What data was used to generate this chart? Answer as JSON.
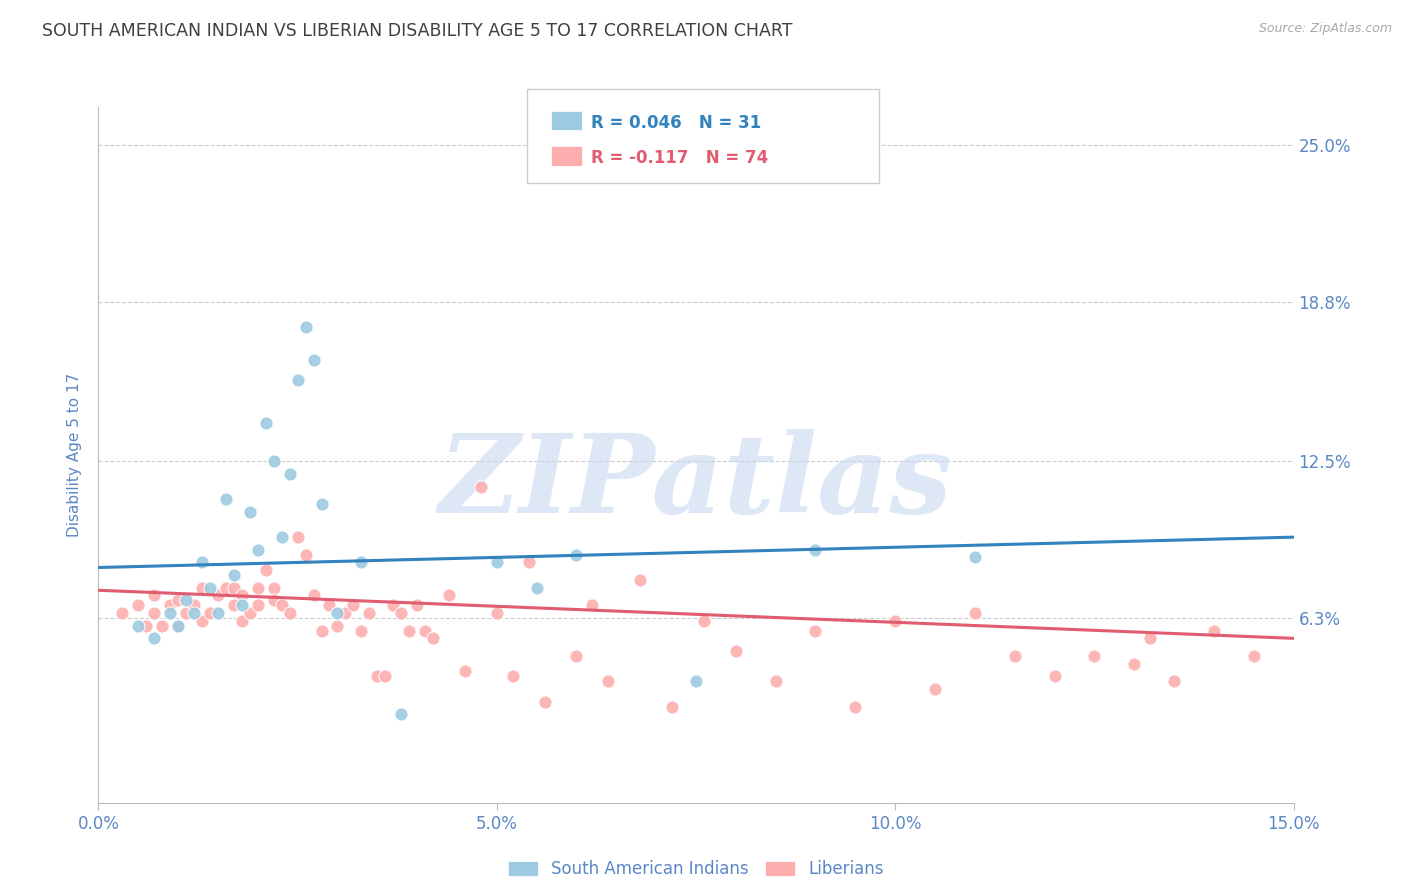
{
  "title": "SOUTH AMERICAN INDIAN VS LIBERIAN DISABILITY AGE 5 TO 17 CORRELATION CHART",
  "source": "Source: ZipAtlas.com",
  "ylabel": "Disability Age 5 to 17",
  "xlim": [
    0.0,
    0.15
  ],
  "ylim": [
    -0.01,
    0.265
  ],
  "ytick_labels": [
    "6.3%",
    "12.5%",
    "18.8%",
    "25.0%"
  ],
  "yticks": [
    0.063,
    0.125,
    0.188,
    0.25
  ],
  "xticks": [
    0.0,
    0.05,
    0.1,
    0.15
  ],
  "xtick_labels": [
    "0.0%",
    "5.0%",
    "10.0%",
    "15.0%"
  ],
  "blue_color": "#9ecae1",
  "pink_color": "#fcaeae",
  "blue_line_color": "#3182bd",
  "pink_line_color": "#e05c70",
  "legend_blue_text": "R = 0.046   N = 31",
  "legend_pink_text": "R = -0.117   N = 74",
  "watermark": "ZIPatlas",
  "watermark_color": "#c8d8f0",
  "blue_label": "South American Indians",
  "pink_label": "Liberians",
  "blue_points_x": [
    0.005,
    0.007,
    0.009,
    0.01,
    0.011,
    0.012,
    0.013,
    0.014,
    0.015,
    0.016,
    0.017,
    0.018,
    0.019,
    0.02,
    0.021,
    0.022,
    0.023,
    0.024,
    0.025,
    0.026,
    0.027,
    0.028,
    0.03,
    0.033,
    0.038,
    0.05,
    0.055,
    0.06,
    0.075,
    0.09,
    0.11
  ],
  "blue_points_y": [
    0.06,
    0.055,
    0.065,
    0.06,
    0.07,
    0.065,
    0.085,
    0.075,
    0.065,
    0.11,
    0.08,
    0.068,
    0.105,
    0.09,
    0.14,
    0.125,
    0.095,
    0.12,
    0.157,
    0.178,
    0.165,
    0.108,
    0.065,
    0.085,
    0.025,
    0.085,
    0.075,
    0.088,
    0.038,
    0.09,
    0.087
  ],
  "pink_points_x": [
    0.003,
    0.005,
    0.006,
    0.007,
    0.007,
    0.008,
    0.009,
    0.01,
    0.01,
    0.011,
    0.012,
    0.013,
    0.013,
    0.014,
    0.015,
    0.016,
    0.017,
    0.017,
    0.018,
    0.018,
    0.019,
    0.02,
    0.02,
    0.021,
    0.022,
    0.022,
    0.023,
    0.024,
    0.025,
    0.026,
    0.027,
    0.028,
    0.029,
    0.03,
    0.031,
    0.032,
    0.033,
    0.034,
    0.035,
    0.036,
    0.037,
    0.038,
    0.039,
    0.04,
    0.041,
    0.042,
    0.044,
    0.046,
    0.048,
    0.05,
    0.052,
    0.054,
    0.056,
    0.06,
    0.062,
    0.064,
    0.068,
    0.072,
    0.076,
    0.08,
    0.085,
    0.09,
    0.095,
    0.1,
    0.105,
    0.11,
    0.115,
    0.12,
    0.125,
    0.13,
    0.132,
    0.135,
    0.14,
    0.145
  ],
  "pink_points_y": [
    0.065,
    0.068,
    0.06,
    0.065,
    0.072,
    0.06,
    0.068,
    0.06,
    0.07,
    0.065,
    0.068,
    0.062,
    0.075,
    0.065,
    0.072,
    0.075,
    0.068,
    0.075,
    0.062,
    0.072,
    0.065,
    0.075,
    0.068,
    0.082,
    0.075,
    0.07,
    0.068,
    0.065,
    0.095,
    0.088,
    0.072,
    0.058,
    0.068,
    0.06,
    0.065,
    0.068,
    0.058,
    0.065,
    0.04,
    0.04,
    0.068,
    0.065,
    0.058,
    0.068,
    0.058,
    0.055,
    0.072,
    0.042,
    0.115,
    0.065,
    0.04,
    0.085,
    0.03,
    0.048,
    0.068,
    0.038,
    0.078,
    0.028,
    0.062,
    0.05,
    0.038,
    0.058,
    0.028,
    0.062,
    0.035,
    0.065,
    0.048,
    0.04,
    0.048,
    0.045,
    0.055,
    0.038,
    0.058,
    0.048
  ],
  "blue_trend": [
    0.083,
    0.095
  ],
  "pink_trend": [
    0.074,
    0.055
  ],
  "grid_color": "#cccccc",
  "background_color": "#ffffff",
  "title_color": "#404040",
  "tick_color": "#5b87c5",
  "axis_label_color": "#5b87c5"
}
